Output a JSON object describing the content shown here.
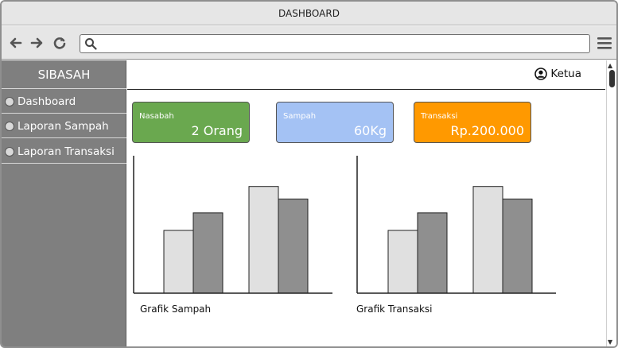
{
  "window": {
    "title": "DASHBOARD"
  },
  "sidebar": {
    "title": "SIBASAH",
    "items": [
      {
        "label": "Dashboard"
      },
      {
        "label": "Laporan Sampah"
      },
      {
        "label": "Laporan Transaksi"
      }
    ]
  },
  "topbar": {
    "user_name": "Ketua",
    "user_icon": "user-circle-icon"
  },
  "cards": [
    {
      "label": "Nasabah",
      "value": "2 Orang",
      "color": "#6aa84f"
    },
    {
      "label": "Sampah",
      "value": "60Kg",
      "color": "#a4c2f4"
    },
    {
      "label": "Transaksi",
      "value": "Rp.200.000",
      "color": "#ff9900"
    }
  ],
  "charts": {
    "sampah": {
      "title": "Grafik Sampah"
    },
    "transaksi": {
      "title": "Grafik Transaksi"
    }
  },
  "chart_data": [
    {
      "type": "bar",
      "title": "Grafik Sampah",
      "categories": [
        "",
        ""
      ],
      "series": [
        {
          "values": [
            50,
            85
          ],
          "color": "#e0e0e0"
        },
        {
          "values": [
            64,
            75
          ],
          "color": "#8f8f8f"
        }
      ],
      "ylim": [
        0,
        100
      ]
    },
    {
      "type": "bar",
      "title": "Grafik Transaksi",
      "categories": [
        "",
        ""
      ],
      "series": [
        {
          "values": [
            50,
            85
          ],
          "color": "#e0e0e0"
        },
        {
          "values": [
            64,
            75
          ],
          "color": "#8f8f8f"
        }
      ],
      "ylim": [
        0,
        100
      ]
    }
  ]
}
